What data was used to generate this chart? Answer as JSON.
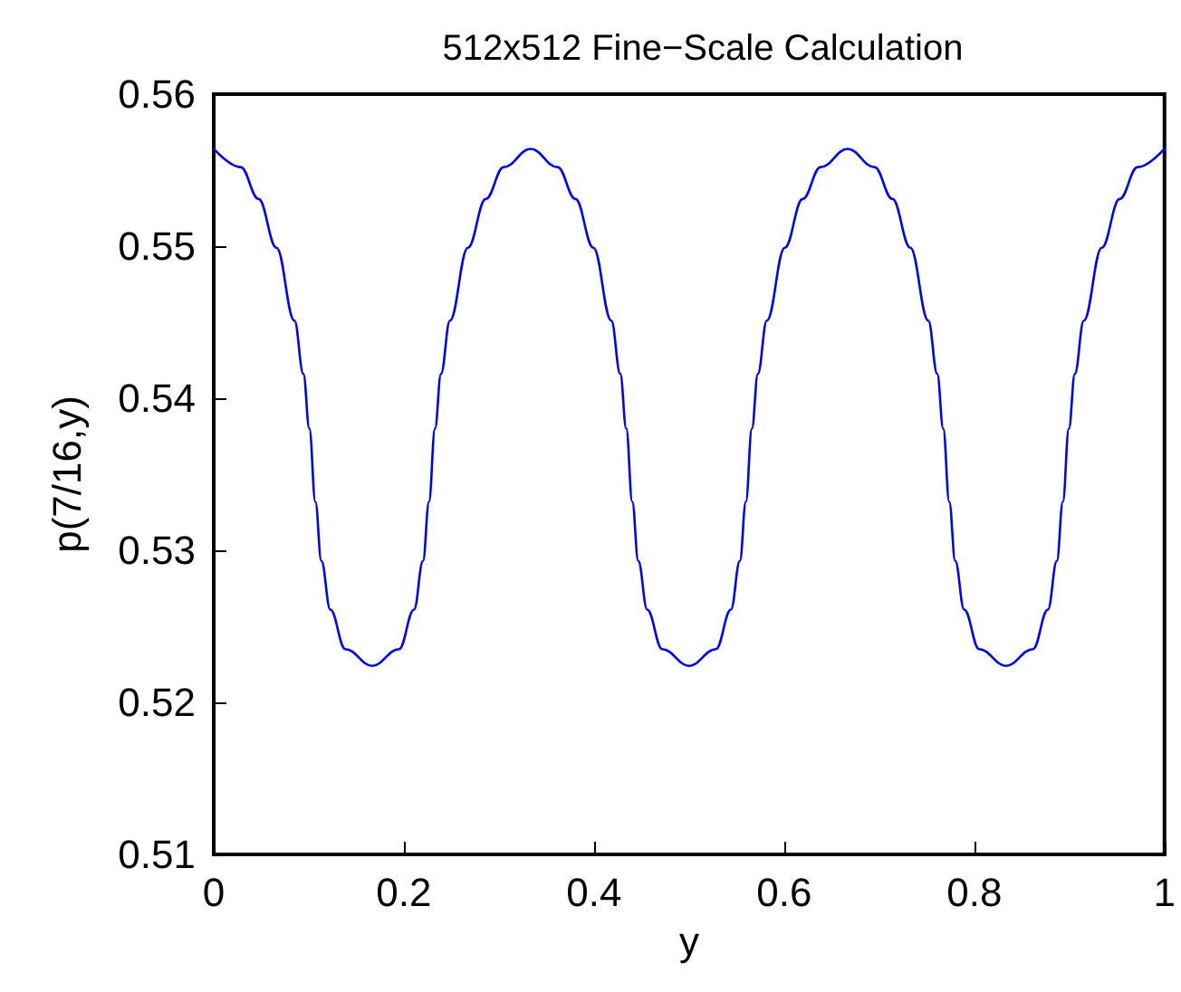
{
  "chart_data": {
    "type": "line",
    "title": "512x512 Fine−Scale Calculation",
    "xlabel": "y",
    "ylabel": "p(7/16,y)",
    "x": [
      0,
      0.0283,
      0.0472,
      0.066,
      0.0849,
      0.0943,
      0.1006,
      0.1069,
      0.1132,
      0.1226,
      0.1384,
      0.1667,
      0.1949,
      0.2107,
      0.2201,
      0.2264,
      0.2327,
      0.239,
      0.2484,
      0.2673,
      0.2861,
      0.305,
      0.3333,
      0.3616,
      0.3805,
      0.3993,
      0.4182,
      0.4276,
      0.4339,
      0.4402,
      0.4465,
      0.4559,
      0.4717,
      0.5,
      0.5282,
      0.544,
      0.5534,
      0.5597,
      0.566,
      0.5723,
      0.5817,
      0.6006,
      0.6194,
      0.6383,
      0.6667,
      0.695,
      0.7139,
      0.7327,
      0.7516,
      0.761,
      0.7673,
      0.7736,
      0.7799,
      0.7893,
      0.8051,
      0.8333,
      0.8616,
      0.8774,
      0.8868,
      0.8931,
      0.8994,
      0.9057,
      0.9151,
      0.934,
      0.9528,
      0.9717,
      1
    ],
    "series": [
      {
        "color": "#0000ff",
        "values": [
          0.5564,
          0.5552,
          0.5531,
          0.5499,
          0.5451,
          0.5416,
          0.538,
          0.5332,
          0.5293,
          0.5261,
          0.5235,
          0.5224,
          0.5235,
          0.5261,
          0.5293,
          0.5332,
          0.538,
          0.5416,
          0.5451,
          0.5499,
          0.5531,
          0.5552,
          0.5564,
          0.5552,
          0.5531,
          0.5499,
          0.5451,
          0.5416,
          0.538,
          0.5332,
          0.5293,
          0.5261,
          0.5235,
          0.5224,
          0.5235,
          0.5261,
          0.5293,
          0.5332,
          0.538,
          0.5416,
          0.5451,
          0.5499,
          0.5531,
          0.5552,
          0.5564,
          0.5552,
          0.5531,
          0.5499,
          0.5451,
          0.5416,
          0.538,
          0.5332,
          0.5293,
          0.5261,
          0.5235,
          0.5224,
          0.5235,
          0.5261,
          0.5293,
          0.5332,
          0.538,
          0.5416,
          0.5451,
          0.5499,
          0.5531,
          0.5552,
          0.5564
        ]
      }
    ],
    "xlim": [
      0,
      1
    ],
    "xticks": [
      0,
      0.2,
      0.4,
      0.6,
      0.8,
      1
    ],
    "ylim": [
      0.51,
      0.56
    ],
    "yticks": [
      0.51,
      0.52,
      0.53,
      0.54,
      0.55,
      0.56
    ],
    "grid": false,
    "marker": "none",
    "line_style": "solid"
  }
}
